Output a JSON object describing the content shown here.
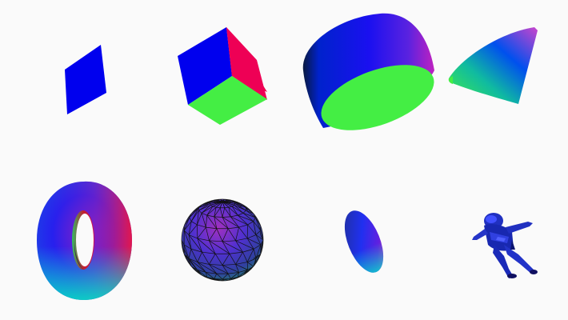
{
  "scene": {
    "background": "#fafafa",
    "colors": {
      "blue": "#0000ee",
      "green": "#44ee44",
      "red": "#ee0044",
      "magenta": "#cc22cc"
    },
    "meshes": [
      {
        "name": "plane",
        "material": "normal"
      },
      {
        "name": "box",
        "material": "normal"
      },
      {
        "name": "cylinder",
        "material": "normal"
      },
      {
        "name": "cone",
        "material": "normal"
      },
      {
        "name": "torus",
        "material": "normal"
      },
      {
        "name": "sphere",
        "material": "normal",
        "wireframe_overlay": true
      },
      {
        "name": "ellipsoid",
        "material": "normal"
      },
      {
        "name": "astronaut",
        "material": "normal"
      }
    ]
  }
}
